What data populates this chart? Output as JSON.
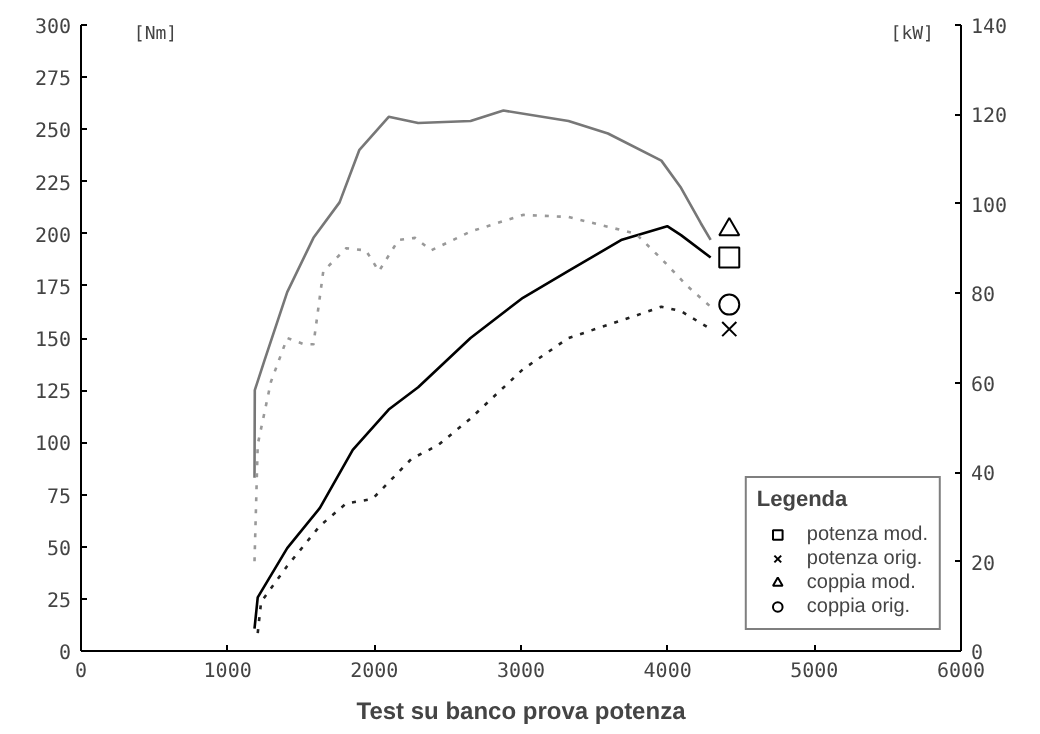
{
  "chart_data": {
    "type": "line",
    "ylabel": "[Nm]",
    "y2label": "[kW]",
    "legend_title": "Legenda",
    "legend": "bottom right",
    "grid": false,
    "annotations": [
      "Test su banco prova potenza"
    ],
    "xlim": [
      0,
      6000
    ],
    "xticks": [
      0,
      1000,
      2000,
      3000,
      4000,
      5000,
      6000
    ],
    "ylim": [
      0,
      300
    ],
    "yticks": [
      0,
      25,
      50,
      75,
      100,
      125,
      150,
      175,
      200,
      225,
      250,
      275,
      300
    ],
    "y2lim": [
      0,
      140
    ],
    "y2ticks": [
      0,
      20,
      40,
      60,
      80,
      100,
      120,
      140
    ],
    "series": [
      {
        "axis": "y2",
        "color": "#000000",
        "line_style": "solid",
        "x": [
          1183,
          1205,
          1406,
          1629,
          1853,
          2098,
          2299,
          2656,
          3013,
          3324,
          3688,
          3997,
          4091,
          4293
        ],
        "values": [
          5,
          12,
          23,
          32,
          45,
          54,
          59,
          70,
          79,
          85,
          92,
          95,
          93,
          88
        ]
      },
      {
        "axis": "y2",
        "color": "#222222",
        "line_style": "dotted",
        "x": [
          1205,
          1228,
          1406,
          1629,
          1808,
          1987,
          2254,
          2433,
          2656,
          3013,
          3324,
          3782,
          3957,
          4091,
          4293
        ],
        "values": [
          4,
          11,
          19,
          28,
          33,
          34,
          43,
          46,
          52,
          63,
          70,
          75,
          77,
          76,
          72
        ]
      },
      {
        "axis": "y",
        "color": "#777777",
        "line_style": "solid",
        "x": [
          1183,
          1185,
          1250,
          1406,
          1585,
          1763,
          1897,
          2098,
          2299,
          2656,
          2880,
          3324,
          3593,
          3957,
          4091,
          4226,
          4293
        ],
        "values": [
          83,
          125,
          139,
          172,
          198,
          215,
          240,
          256,
          253,
          254,
          259,
          254,
          248,
          235,
          222,
          205,
          197
        ]
      },
      {
        "axis": "y",
        "color": "#999999",
        "line_style": "dotted",
        "x": [
          1183,
          1205,
          1295,
          1406,
          1520,
          1585,
          1652,
          1808,
          1942,
          2031,
          2165,
          2277,
          2388,
          2656,
          3013,
          3324,
          3782,
          3957,
          4132,
          4293
        ],
        "values": [
          43,
          99,
          129,
          150,
          147,
          147,
          182,
          193,
          192,
          182,
          197,
          198,
          192,
          201,
          209,
          208,
          200,
          188,
          175,
          165
        ]
      },
      {
        "type": "scatter",
        "name": "potenza mod.",
        "axis": "y2",
        "color": "#000000",
        "marker": "square",
        "x": [
          4420
        ],
        "values": [
          88
        ]
      },
      {
        "type": "scatter",
        "name": "potenza orig.",
        "axis": "y2",
        "color": "#000000",
        "marker": "cross",
        "x": [
          4420
        ],
        "values": [
          72
        ]
      },
      {
        "type": "scatter",
        "name": "coppia mod.",
        "axis": "y",
        "color": "#000000",
        "marker": "triangle",
        "x": [
          4420
        ],
        "values": [
          202
        ]
      },
      {
        "type": "scatter",
        "name": "coppia orig.",
        "axis": "y",
        "color": "#000000",
        "marker": "circle",
        "x": [
          4420
        ],
        "values": [
          166
        ]
      }
    ]
  }
}
